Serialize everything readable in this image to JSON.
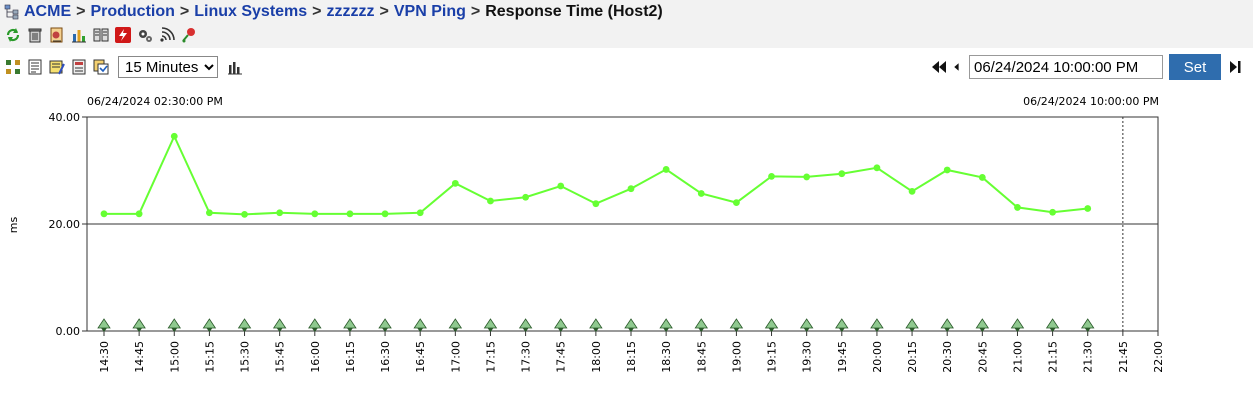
{
  "breadcrumb": {
    "items": [
      "ACME",
      "Production",
      "Linux Systems",
      "zzzzzz",
      "VPN Ping"
    ],
    "separator": ">",
    "current": "Response Time (Host2)"
  },
  "toolbar": {
    "row1_icons": [
      "refresh-icon",
      "trash-icon",
      "report-icon",
      "chart-bars-icon",
      "config-icon",
      "flash-icon",
      "gears-icon",
      "signal-icon",
      "pin-icon"
    ],
    "row2_icons": [
      "hierarchy-icon",
      "document-icon",
      "notes-icon",
      "list-icon",
      "copy-icon"
    ],
    "interval": {
      "selected": "15 Minutes",
      "options": [
        "15 Minutes"
      ]
    },
    "chart_toggle_icon": "bar-chart-icon"
  },
  "nav": {
    "datetime_value": "06/24/2024 10:00:00 PM",
    "set_label": "Set"
  },
  "colors": {
    "link": "#1a3fa8",
    "series": "#66ff33",
    "button": "#2f6dae"
  },
  "chart_data": {
    "type": "line",
    "start_label": "06/24/2024 02:30:00 PM",
    "end_label": "06/24/2024 10:00:00 PM",
    "ylabel": "ms",
    "ylim": [
      0,
      40
    ],
    "yticks": [
      "0.00",
      "20.00",
      "40.00"
    ],
    "threshold": 20,
    "xticks": [
      "14:30",
      "14:45",
      "15:00",
      "15:15",
      "15:30",
      "15:45",
      "16:00",
      "16:15",
      "16:30",
      "16:45",
      "17:00",
      "17:15",
      "17:30",
      "17:45",
      "18:00",
      "18:15",
      "18:30",
      "18:45",
      "19:00",
      "19:15",
      "19:30",
      "19:45",
      "20:00",
      "20:15",
      "20:30",
      "20:45",
      "21:00",
      "21:15",
      "21:30",
      "21:45",
      "22:00"
    ],
    "series": [
      {
        "values": [
          21.9,
          21.9,
          36.4,
          22.1,
          21.8,
          22.1,
          21.9,
          21.9,
          21.9,
          22.1,
          27.6,
          24.3,
          25.0,
          27.1,
          23.8,
          26.6,
          30.2,
          25.7,
          24.0,
          28.9,
          28.8,
          29.4,
          30.5,
          26.1,
          30.1,
          28.7,
          23.1,
          22.2,
          22.9
        ]
      }
    ],
    "now_marker": "21:45",
    "grid": false
  }
}
